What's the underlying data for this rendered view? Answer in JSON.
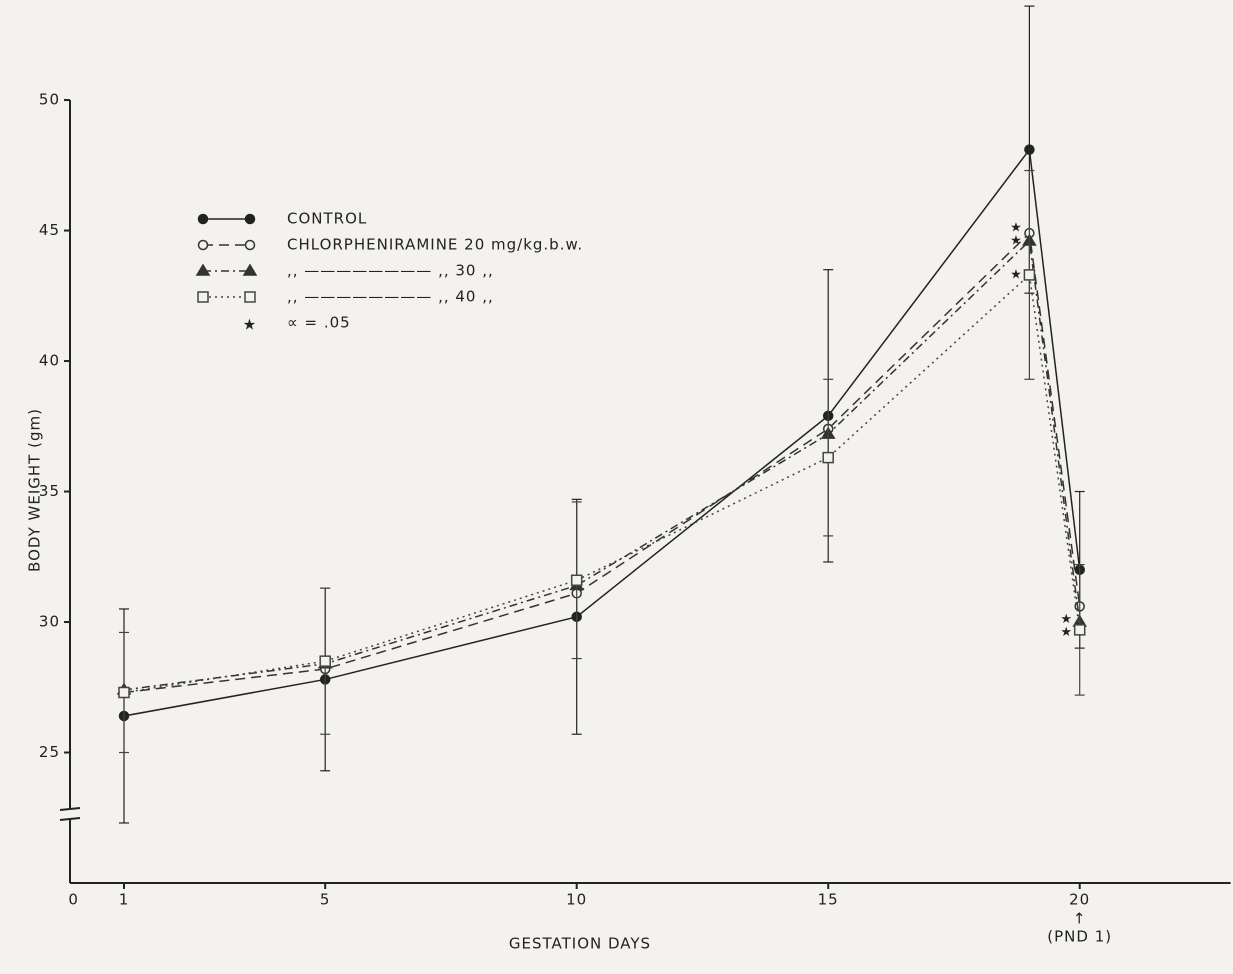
{
  "chart_data": {
    "type": "line",
    "x_label": "GESTATION DAYS",
    "y_label": "BODY WEIGHT (gm)",
    "x": [
      1,
      5,
      10,
      15,
      19,
      20
    ],
    "xlim": [
      0,
      23
    ],
    "ylim": [
      20,
      50.5
    ],
    "xticks": [
      0,
      1,
      5,
      10,
      15,
      20
    ],
    "yticks": [
      25,
      30,
      35,
      40,
      45,
      50
    ],
    "x_annotation": "↑",
    "x_annotation_sub": "(PND 1)",
    "axis_break": true,
    "series": [
      {
        "name": "CONTROL",
        "color": "#222",
        "line_style": "solid",
        "marker": "circle-filled",
        "values": [
          26.4,
          27.8,
          30.2,
          37.9,
          48.1,
          32.0
        ],
        "errors": [
          4.1,
          3.5,
          4.5,
          5.6,
          5.5,
          3.0
        ]
      },
      {
        "name": "CHLORPHENIRAMINE 20 mg/kg.b.w.",
        "color": "#333",
        "line_style": "dashed",
        "marker": "circle-open",
        "values": [
          27.3,
          28.2,
          31.1,
          37.4,
          44.9,
          30.6
        ]
      },
      {
        "name": ",, ———————— ,,  30  ,,",
        "color": "#333",
        "line_style": "dashdot",
        "marker": "triangle",
        "values": [
          27.4,
          28.4,
          31.4,
          37.2,
          44.6,
          30.0
        ]
      },
      {
        "name": ",, ———————— ,,  40  ,,",
        "color": "#444",
        "line_style": "dotted",
        "marker": "square-open",
        "values": [
          27.3,
          28.5,
          31.6,
          36.3,
          43.3,
          29.7
        ],
        "errors": [
          2.3,
          2.8,
          3.0,
          3.0,
          4.0,
          2.5
        ]
      }
    ],
    "significance_label": "∝ = .05",
    "significance_marks": [
      {
        "x": 19,
        "y": 45.1
      },
      {
        "x": 19,
        "y": 44.6
      },
      {
        "x": 19,
        "y": 43.3
      },
      {
        "x": 20,
        "y": 30.1
      },
      {
        "x": 20,
        "y": 29.6
      }
    ]
  }
}
